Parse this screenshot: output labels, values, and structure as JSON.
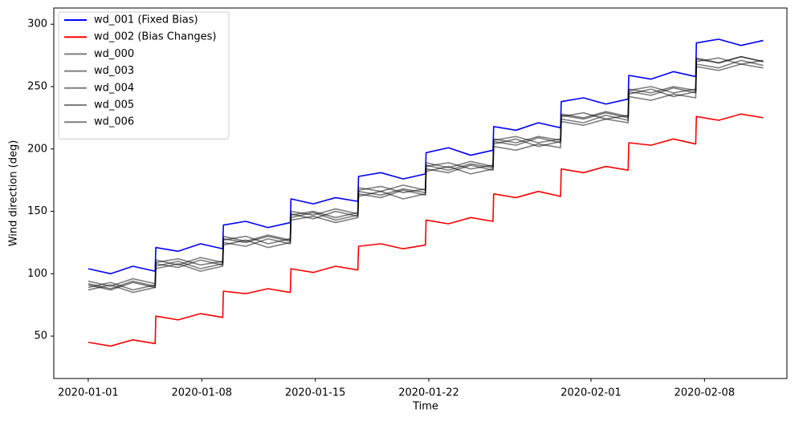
{
  "chart_data": {
    "type": "line",
    "xlabel": "Time",
    "ylabel": "Wind direction (deg)",
    "x": [
      "2020-01-01 00:00",
      "2020-01-02 09:00",
      "2020-01-03 18:00",
      "2020-01-05 03:00",
      "2020-01-05 04:00",
      "2020-01-06 13:00",
      "2020-01-07 22:00",
      "2020-01-09 07:00",
      "2020-01-09 08:00",
      "2020-01-10 17:00",
      "2020-01-12 02:00",
      "2020-01-13 11:00",
      "2020-01-13 12:00",
      "2020-01-14 21:00",
      "2020-01-16 06:00",
      "2020-01-17 15:00",
      "2020-01-17 16:00",
      "2020-01-19 01:00",
      "2020-01-20 10:00",
      "2020-01-21 19:00",
      "2020-01-21 20:00",
      "2020-01-23 05:00",
      "2020-01-24 14:00",
      "2020-01-25 23:00",
      "2020-01-26 00:00",
      "2020-01-27 09:00",
      "2020-01-28 18:00",
      "2020-01-30 03:00",
      "2020-01-30 04:00",
      "2020-01-31 13:00",
      "2020-02-01 22:00",
      "2020-02-03 07:00",
      "2020-02-03 08:00",
      "2020-02-04 17:00",
      "2020-02-06 02:00",
      "2020-02-07 11:00",
      "2020-02-07 12:00",
      "2020-02-08 21:00",
      "2020-02-10 06:00",
      "2020-02-11 15:00"
    ],
    "series": [
      {
        "name": "wd_001 (Fixed Bias)",
        "color": "#0000ff",
        "values": [
          104,
          100,
          106,
          102,
          121,
          118,
          124,
          120,
          139,
          142,
          137,
          141,
          160,
          156,
          161,
          158,
          178,
          181,
          176,
          180,
          197,
          201,
          195,
          199,
          218,
          215,
          221,
          217,
          238,
          241,
          236,
          240,
          259,
          256,
          262,
          258,
          285,
          288,
          283,
          287
        ]
      },
      {
        "name": "wd_002 (Bias Changes)",
        "color": "#ff0000",
        "values": [
          45,
          42,
          47,
          44,
          66,
          63,
          68,
          65,
          86,
          84,
          88,
          85,
          104,
          101,
          106,
          103,
          122,
          124,
          120,
          123,
          143,
          140,
          145,
          142,
          164,
          161,
          166,
          162,
          184,
          181,
          186,
          183,
          205,
          203,
          208,
          204,
          226,
          223,
          228,
          225
        ]
      },
      {
        "name": "wd_000",
        "color": "rgba(0,0,0,0.5)",
        "values": [
          92,
          88,
          94,
          90,
          108,
          105,
          111,
          107,
          127,
          130,
          124,
          128,
          148,
          144,
          150,
          146,
          167,
          170,
          165,
          168,
          186,
          189,
          184,
          187,
          206,
          203,
          209,
          205,
          226,
          229,
          224,
          227,
          246,
          243,
          249,
          245,
          270,
          273,
          268,
          271
        ]
      },
      {
        "name": "wd_003",
        "color": "rgba(0,0,0,0.5)",
        "values": [
          89,
          93,
          87,
          91,
          106,
          110,
          104,
          108,
          125,
          122,
          128,
          124,
          145,
          149,
          143,
          147,
          164,
          161,
          167,
          163,
          184,
          181,
          187,
          183,
          204,
          208,
          202,
          206,
          224,
          221,
          227,
          223,
          244,
          248,
          242,
          246,
          268,
          265,
          271,
          267
        ]
      },
      {
        "name": "wd_004",
        "color": "rgba(0,0,0,0.5)",
        "values": [
          94,
          90,
          96,
          92,
          111,
          107,
          113,
          109,
          130,
          126,
          131,
          127,
          150,
          147,
          152,
          148,
          169,
          166,
          171,
          167,
          189,
          185,
          190,
          186,
          208,
          205,
          210,
          207,
          228,
          225,
          230,
          226,
          248,
          245,
          250,
          247,
          273,
          269,
          274,
          270
        ]
      },
      {
        "name": "wd_005",
        "color": "rgba(0,0,0,0.5)",
        "values": [
          87,
          91,
          85,
          89,
          104,
          108,
          102,
          106,
          123,
          127,
          121,
          125,
          143,
          146,
          141,
          145,
          162,
          166,
          160,
          164,
          182,
          186,
          180,
          184,
          202,
          199,
          204,
          201,
          222,
          219,
          224,
          221,
          242,
          239,
          244,
          241,
          266,
          263,
          268,
          265
        ]
      },
      {
        "name": "wd_006",
        "color": "rgba(0,0,0,0.5)",
        "values": [
          91,
          87,
          93,
          89,
          109,
          112,
          107,
          110,
          128,
          125,
          130,
          126,
          147,
          150,
          145,
          149,
          166,
          163,
          168,
          165,
          187,
          183,
          188,
          185,
          207,
          210,
          205,
          208,
          227,
          224,
          229,
          225,
          247,
          250,
          245,
          248,
          272,
          269,
          274,
          270
        ]
      }
    ],
    "xlim": [
      "2019-12-29 21:00",
      "2020-02-13 02:00"
    ],
    "xticks": [
      "2020-01-01",
      "2020-01-08",
      "2020-01-15",
      "2020-01-22",
      "2020-02-01",
      "2020-02-08"
    ],
    "ylim": [
      16,
      313
    ],
    "yticks": [
      50,
      100,
      150,
      200,
      250,
      300
    ],
    "legend": "upper left",
    "grid": false
  }
}
